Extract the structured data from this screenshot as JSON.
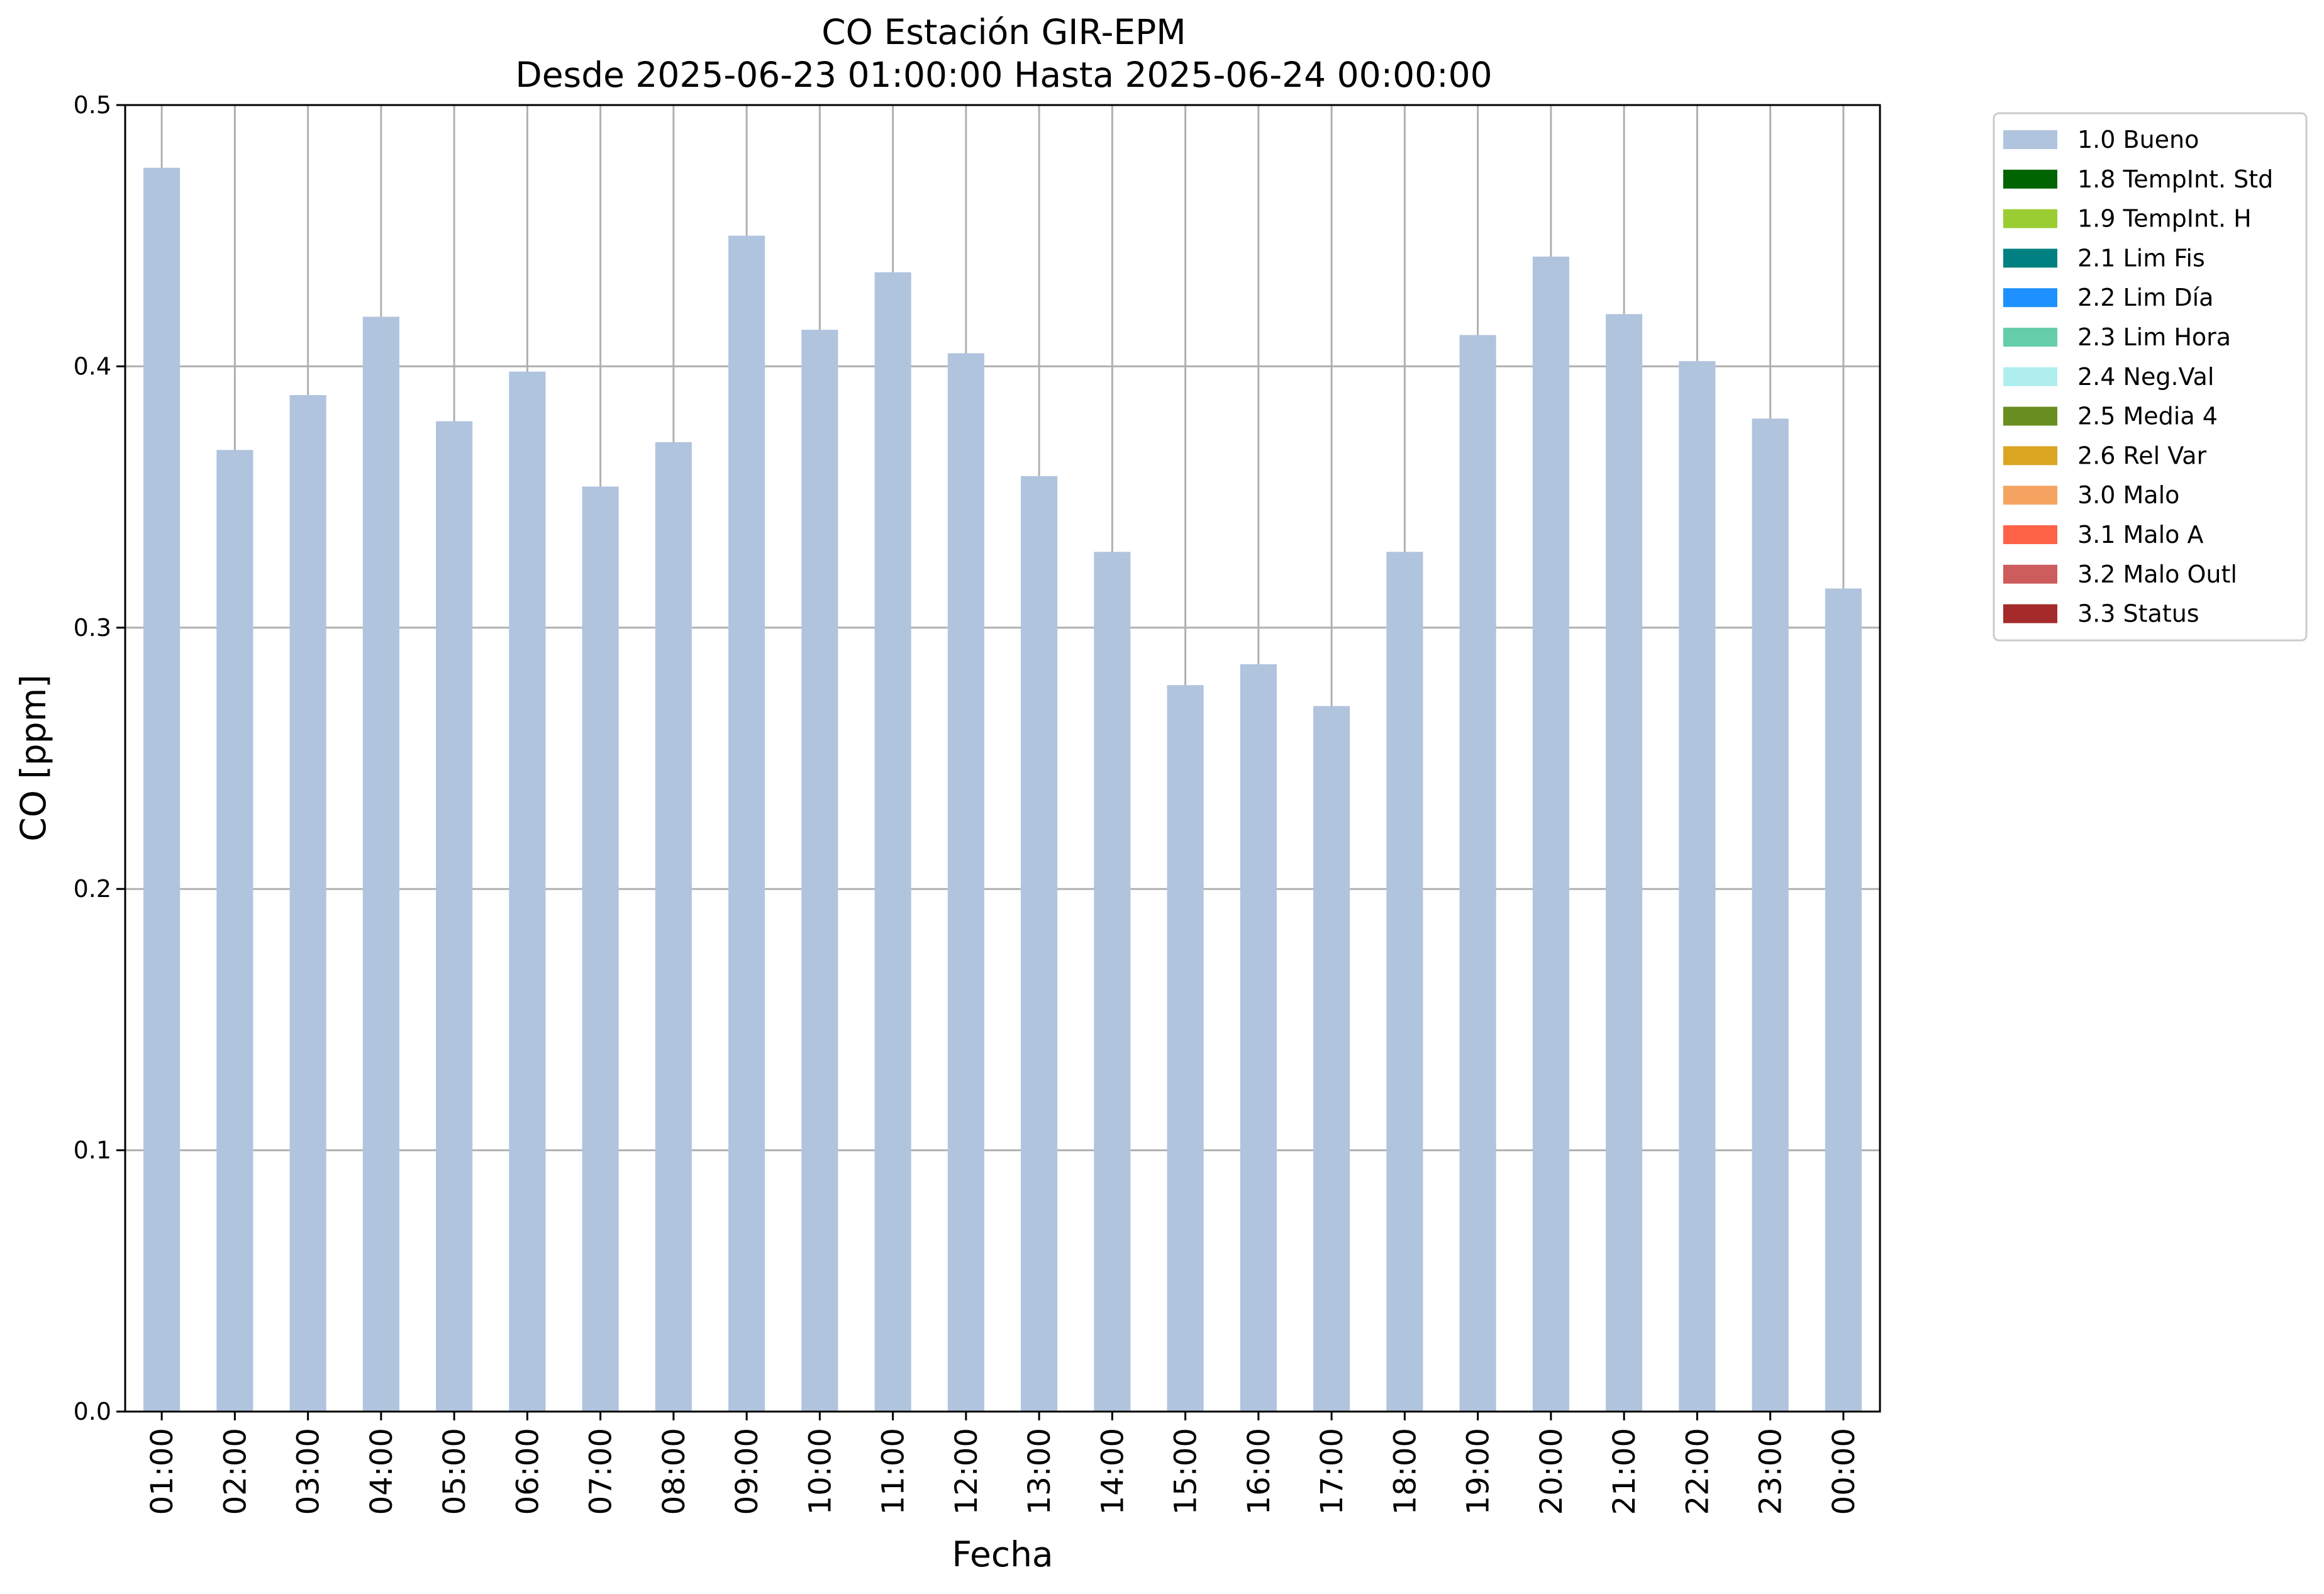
{
  "chart_data": {
    "type": "bar",
    "title": "CO Estación GIR-EPM",
    "subtitle": "Desde 2025-06-23 01:00:00 Hasta 2025-06-24 00:00:00",
    "xlabel": "Fecha",
    "ylabel": "CO [ppm]",
    "ylim": [
      0,
      0.5
    ],
    "yticks": [
      "0.0",
      "0.1",
      "0.2",
      "0.3",
      "0.4",
      "0.5"
    ],
    "grid": true,
    "legend_position": "outside-top-right",
    "categories": [
      "01:00",
      "02:00",
      "03:00",
      "04:00",
      "05:00",
      "06:00",
      "07:00",
      "08:00",
      "09:00",
      "10:00",
      "11:00",
      "12:00",
      "13:00",
      "14:00",
      "15:00",
      "16:00",
      "17:00",
      "18:00",
      "19:00",
      "20:00",
      "21:00",
      "22:00",
      "23:00",
      "00:00"
    ],
    "series": [
      {
        "name": "1.0 Bueno",
        "color": "#b0c4de",
        "values": [
          0.476,
          0.368,
          0.389,
          0.419,
          0.379,
          0.398,
          0.354,
          0.371,
          0.45,
          0.414,
          0.436,
          0.405,
          0.358,
          0.329,
          0.278,
          0.286,
          0.27,
          0.329,
          0.412,
          0.442,
          0.42,
          0.402,
          0.38,
          0.315
        ]
      }
    ],
    "legend": [
      {
        "label": "1.0 Bueno",
        "color": "#b0c4de"
      },
      {
        "label": "1.8 TempInt. Std",
        "color": "#006400"
      },
      {
        "label": "1.9 TempInt. H",
        "color": "#9acd32"
      },
      {
        "label": "2.1 Lim Fis",
        "color": "#008080"
      },
      {
        "label": "2.2 Lim Día",
        "color": "#1e90ff"
      },
      {
        "label": "2.3 Lim Hora",
        "color": "#66cdaa"
      },
      {
        "label": "2.4 Neg.Val",
        "color": "#afeeee"
      },
      {
        "label": "2.5 Media 4",
        "color": "#6b8e23"
      },
      {
        "label": "2.6 Rel Var",
        "color": "#daa520"
      },
      {
        "label": "3.0 Malo",
        "color": "#f4a460"
      },
      {
        "label": "3.1 Malo A",
        "color": "#ff6347"
      },
      {
        "label": "3.2 Malo Outl",
        "color": "#cd5c5c"
      },
      {
        "label": "3.3 Status",
        "color": "#a52a2a"
      }
    ]
  }
}
